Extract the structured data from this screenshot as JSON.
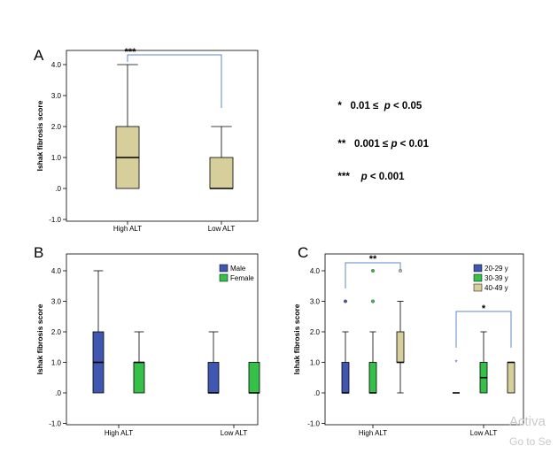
{
  "legend_notes": [
    {
      "stars": "*",
      "text": "0.01 ≤",
      "p": "p",
      "rest": "< 0.05"
    },
    {
      "stars": "**",
      "text": "0.001 ≤",
      "p": "p",
      "rest": "< 0.01"
    },
    {
      "stars": "***",
      "text": "",
      "p": "p",
      "rest": "< 0.001"
    }
  ],
  "watermark": {
    "line1": "Activa",
    "line2": "Go to Se"
  },
  "colors": {
    "tan": "#d6cf9b",
    "blue": "#3f57b0",
    "green": "#35c04a",
    "bracket": "#5b8ac4"
  },
  "chart_data": [
    {
      "panel": "A",
      "type": "box",
      "ylabel": "Ishak fibrosis score",
      "yticks": [
        "-1.0",
        ".0",
        "1.0",
        "2.0",
        "3.0",
        "4.0"
      ],
      "ylim": [
        -1,
        4.3
      ],
      "categories": [
        "High ALT",
        "Low ALT"
      ],
      "series": [
        {
          "color": "#d6cf9b",
          "boxes": [
            {
              "min": 0,
              "q1": 0,
              "median": 1,
              "q3": 2,
              "max": 4,
              "outliers": []
            },
            {
              "min": 0,
              "q1": 0,
              "median": 0,
              "q3": 1,
              "max": 2,
              "outliers": []
            }
          ]
        }
      ],
      "annotations": [
        {
          "label": "***",
          "between": [
            "High ALT",
            "Low ALT"
          ]
        }
      ]
    },
    {
      "panel": "B",
      "type": "box",
      "ylabel": "Ishak fibrosis score",
      "yticks": [
        "-1.0",
        ".0",
        "1.0",
        "2.0",
        "3.0",
        "4.0"
      ],
      "ylim": [
        -1,
        4.3
      ],
      "categories": [
        "High ALT",
        "Low ALT"
      ],
      "series": [
        {
          "name": "Male",
          "color": "#3f57b0",
          "boxes": [
            {
              "min": 0,
              "q1": 0,
              "median": 1,
              "q3": 2,
              "max": 4,
              "outliers": []
            },
            {
              "min": 0,
              "q1": 0,
              "median": 0,
              "q3": 1,
              "max": 2,
              "outliers": []
            }
          ]
        },
        {
          "name": "Female",
          "color": "#35c04a",
          "boxes": [
            {
              "min": 0,
              "q1": 0,
              "median": 1,
              "q3": 1,
              "max": 2,
              "outliers": []
            },
            {
              "min": 0,
              "q1": 0,
              "median": 0,
              "q3": 1,
              "max": 1,
              "outliers": []
            }
          ]
        }
      ],
      "legend": "top-right"
    },
    {
      "panel": "C",
      "type": "box",
      "ylabel": "Ishak fibrosis score",
      "yticks": [
        "-1.0",
        ".0",
        "1.0",
        "2.0",
        "3.0",
        "4.0"
      ],
      "ylim": [
        -1,
        4.3
      ],
      "categories": [
        "High ALT",
        "Low ALT"
      ],
      "series": [
        {
          "name": "20-29 y",
          "color": "#3f57b0",
          "boxes": [
            {
              "min": 0,
              "q1": 0,
              "median": 0,
              "q3": 1,
              "max": 2,
              "outliers": [
                3
              ]
            },
            {
              "min": 0,
              "q1": 0,
              "median": 0,
              "q3": 0,
              "max": 0,
              "outliers": [],
              "extremes": [
                1
              ]
            }
          ]
        },
        {
          "name": "30-39 y",
          "color": "#35c04a",
          "boxes": [
            {
              "min": 0,
              "q1": 0,
              "median": 0,
              "q3": 1,
              "max": 2,
              "outliers": [
                3,
                4
              ]
            },
            {
              "min": 0,
              "q1": 0,
              "median": 0.5,
              "q3": 1,
              "max": 2,
              "outliers": []
            }
          ]
        },
        {
          "name": "40-49 y",
          "color": "#d6cf9b",
          "boxes": [
            {
              "min": 0,
              "q1": 1,
              "median": 1,
              "q3": 2,
              "max": 3,
              "outliers": [
                4
              ]
            },
            {
              "min": 0,
              "q1": 0,
              "median": 1,
              "q3": 1,
              "max": 1,
              "outliers": []
            }
          ]
        }
      ],
      "legend": "top-right",
      "annotations": [
        {
          "label": "**",
          "within": "High ALT",
          "between": [
            "20-29 y",
            "40-49 y"
          ]
        },
        {
          "label": "*",
          "within": "Low ALT",
          "between": [
            "20-29 y",
            "40-49 y"
          ]
        }
      ]
    }
  ]
}
